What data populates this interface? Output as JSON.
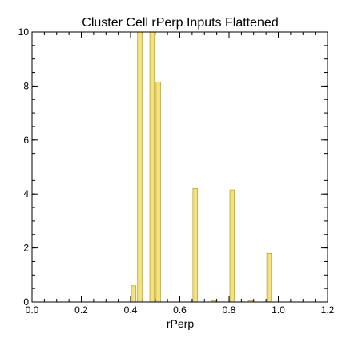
{
  "chart_data": {
    "type": "bar",
    "title": "Cluster Cell rPerp Inputs Flattened",
    "xlabel": "rPerp",
    "ylabel": "",
    "xlim": [
      0.0,
      1.2
    ],
    "ylim": [
      0,
      10
    ],
    "x_ticks": [
      "0.0",
      "0.2",
      "0.4",
      "0.6",
      "0.8",
      "1.0",
      "1.2"
    ],
    "x_tick_values": [
      0.0,
      0.2,
      0.4,
      0.6,
      0.8,
      1.0,
      1.2
    ],
    "y_ticks": [
      "0",
      "2",
      "4",
      "6",
      "8",
      "10"
    ],
    "y_tick_values": [
      0,
      2,
      4,
      6,
      8,
      10
    ],
    "x_minor_step": 0.05,
    "y_minor_step": 0.5,
    "bin_width": 0.025,
    "bars": [
      {
        "x": 0.4,
        "value": 0.6
      },
      {
        "x": 0.425,
        "value": 10.0
      },
      {
        "x": 0.475,
        "value": 10.0
      },
      {
        "x": 0.5,
        "value": 8.15
      },
      {
        "x": 0.65,
        "value": 4.2
      },
      {
        "x": 0.725,
        "value": 0.05
      },
      {
        "x": 0.8,
        "value": 4.15
      },
      {
        "x": 0.875,
        "value": 0.05
      },
      {
        "x": 0.95,
        "value": 1.8
      }
    ],
    "grid": false,
    "bar_color": "#f5e27a",
    "bar_edge_color": "#b8a445"
  }
}
